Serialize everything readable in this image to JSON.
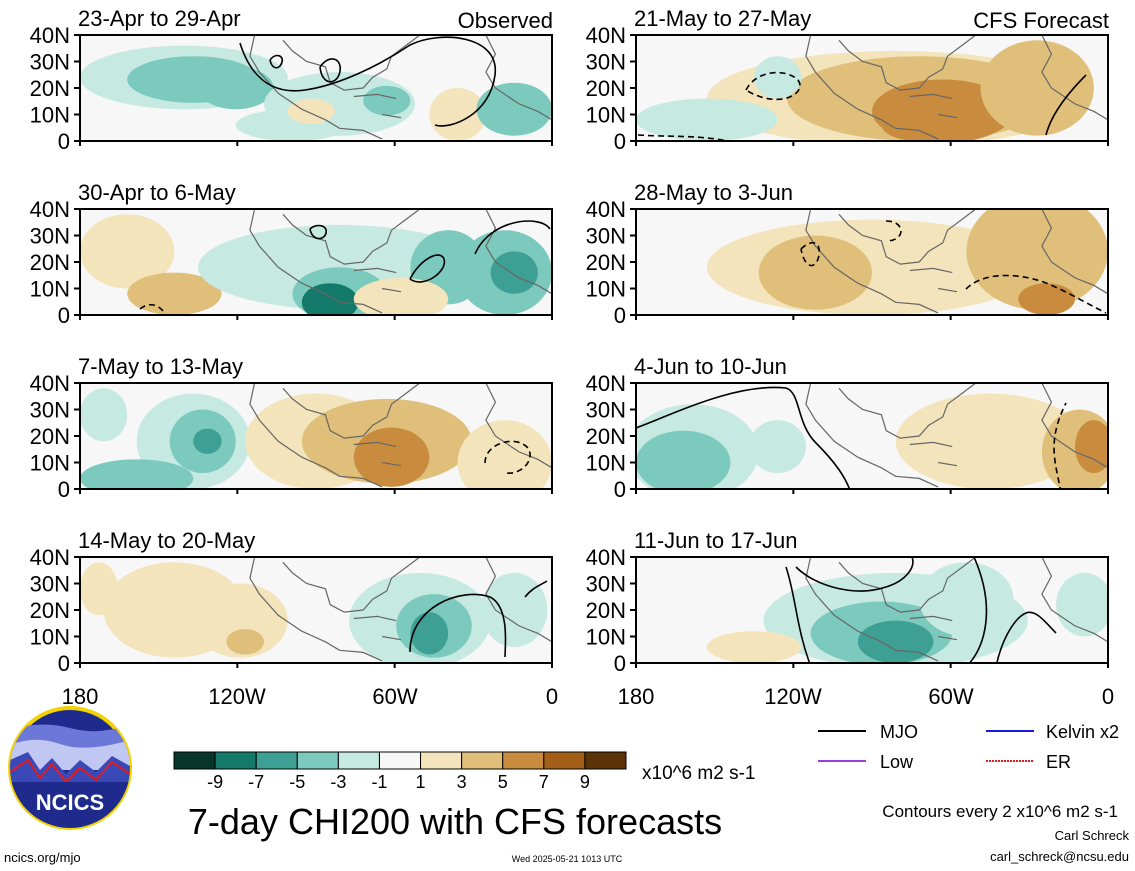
{
  "figure": {
    "title": "7-day CHI200 with CFS forecasts",
    "source_url": "ncics.org/mjo",
    "timestamp": "Wed 2025-05-21 1013 UTC",
    "author": "Carl Schreck",
    "email": "carl_schreck@ncsu.edu",
    "logo_text": "NCICS"
  },
  "columns": {
    "observed_label": "Observed",
    "forecast_label": "CFS Forecast"
  },
  "panels": [
    {
      "label": "23-Apr to 29-Apr"
    },
    {
      "label": "30-Apr to 6-May"
    },
    {
      "label": "7-May to 13-May"
    },
    {
      "label": "14-May to 20-May"
    },
    {
      "label": "21-May to 27-May"
    },
    {
      "label": "28-May to 3-Jun"
    },
    {
      "label": "4-Jun to 10-Jun"
    },
    {
      "label": "11-Jun to 17-Jun"
    }
  ],
  "axes": {
    "lat_ticks": [
      "40N",
      "30N",
      "20N",
      "10N",
      "0"
    ],
    "lon_ticks": [
      "180",
      "120W",
      "60W",
      "0"
    ]
  },
  "colorbar": {
    "tick_labels": [
      "-9",
      "-7",
      "-5",
      "-3",
      "-1",
      "1",
      "3",
      "5",
      "7",
      "9"
    ],
    "units": "x10^6 m2 s-1",
    "colors": [
      "#08362b",
      "#137a6b",
      "#3e9f94",
      "#7ccabd",
      "#c6e9e2",
      "#f7f7f7",
      "#f3e4bb",
      "#dfbf7a",
      "#c98c3f",
      "#a35f17",
      "#5c3307"
    ]
  },
  "legend": {
    "items": [
      {
        "label": "MJO",
        "color": "#000000"
      },
      {
        "label": "Kelvin x2",
        "color": "#1a1adf"
      },
      {
        "label": "Low",
        "color": "#9a3fd5"
      },
      {
        "label": "ER",
        "color": "#e01c1c"
      }
    ],
    "contour_note": "Contours every 2 x10^6 m2 s-1"
  }
}
